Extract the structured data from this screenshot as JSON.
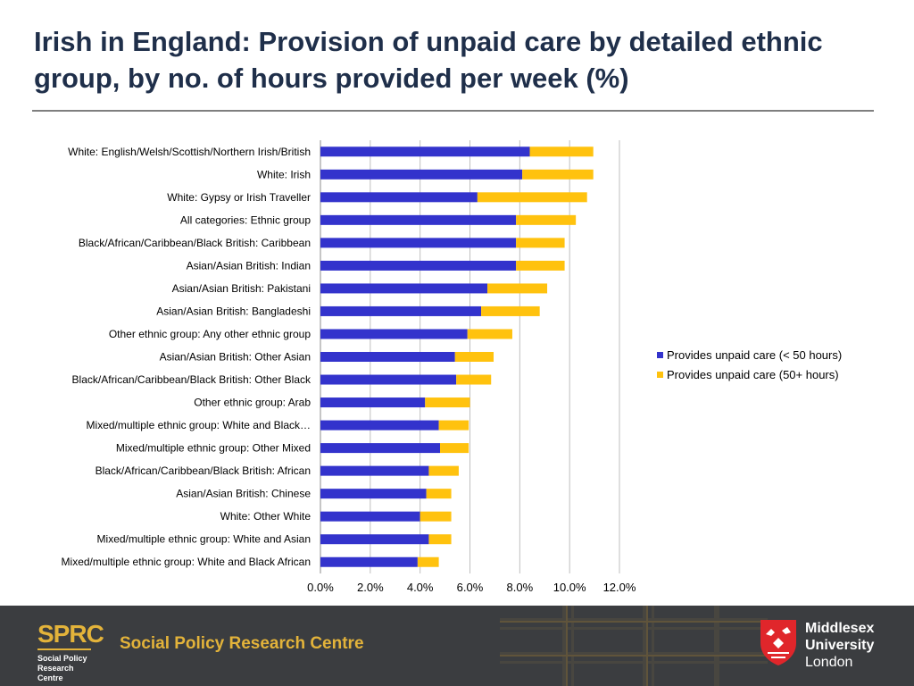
{
  "page": {
    "title": "Irish in England: Provision of unpaid care by detailed ethnic group, by no. of hours provided per week (%)"
  },
  "chart_data": {
    "type": "bar",
    "orientation": "horizontal",
    "stacked": true,
    "title": "",
    "xlabel": "",
    "ylabel": "",
    "xlim": [
      0,
      12
    ],
    "x_ticks": [
      "0.0%",
      "2.0%",
      "4.0%",
      "6.0%",
      "8.0%",
      "10.0%",
      "12.0%"
    ],
    "grid": true,
    "legend_position": "right",
    "categories": [
      "White: English/Welsh/Scottish/Northern Irish/British",
      "White: Irish",
      "White: Gypsy or Irish Traveller",
      "All categories: Ethnic group",
      "Black/African/Caribbean/Black British: Caribbean",
      "Asian/Asian British: Indian",
      "Asian/Asian British: Pakistani",
      "Asian/Asian British: Bangladeshi",
      "Other ethnic group: Any other ethnic group",
      "Asian/Asian British: Other Asian",
      "Black/African/Caribbean/Black British: Other Black",
      "Other ethnic group: Arab",
      "Mixed/multiple ethnic group: White and Black…",
      "Mixed/multiple ethnic group: Other Mixed",
      "Black/African/Caribbean/Black British: African",
      "Asian/Asian British: Chinese",
      "White: Other White",
      "Mixed/multiple ethnic group: White and Asian",
      "Mixed/multiple ethnic group: White and Black African"
    ],
    "series": [
      {
        "name": "Provides unpaid care (< 50 hours)",
        "color": "#3333cc",
        "values": [
          8.4,
          8.1,
          6.3,
          7.85,
          7.85,
          7.85,
          6.7,
          6.45,
          5.9,
          5.4,
          5.45,
          4.2,
          4.75,
          4.8,
          4.35,
          4.25,
          4.0,
          4.35,
          3.9
        ]
      },
      {
        "name": "Provides unpaid care (50+ hours)",
        "color": "#ffc20e",
        "values": [
          2.55,
          2.85,
          4.4,
          2.4,
          1.95,
          1.95,
          2.4,
          2.35,
          1.8,
          1.55,
          1.4,
          1.8,
          1.2,
          1.15,
          1.2,
          1.0,
          1.25,
          0.9,
          0.85
        ]
      }
    ]
  },
  "footer": {
    "sprc_mark": "SPRC",
    "sprc_sub_line1": "Social Policy",
    "sprc_sub_line2": "Research Centre",
    "sprc_name": "Social Policy Research Centre",
    "uni_line1": "Middlesex",
    "uni_line2": "University",
    "uni_line3": "London",
    "crest_icon": "middlesex-crest-icon"
  }
}
